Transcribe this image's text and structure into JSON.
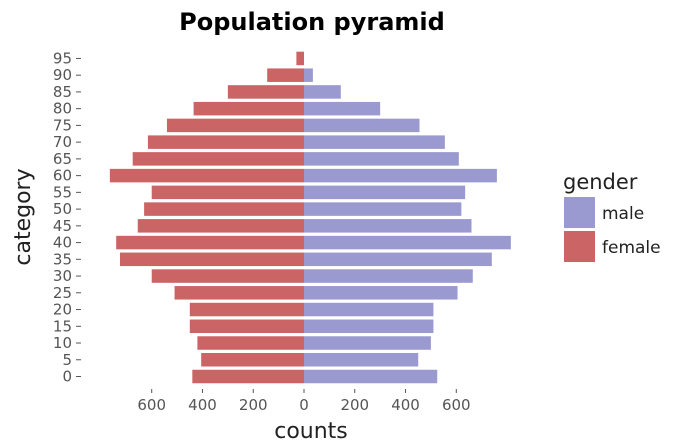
{
  "chart_data": {
    "type": "bar",
    "orientation": "horizontal",
    "title": "Population pyramid",
    "xlabel": "counts",
    "ylabel": "category",
    "categories": [
      "0",
      "5",
      "10",
      "15",
      "20",
      "25",
      "30",
      "35",
      "40",
      "45",
      "50",
      "55",
      "60",
      "65",
      "70",
      "75",
      "80",
      "85",
      "90",
      "95"
    ],
    "series": [
      {
        "name": "male",
        "color": "#9a9ad0",
        "values": [
          525,
          450,
          500,
          510,
          510,
          605,
          665,
          740,
          815,
          660,
          620,
          635,
          760,
          610,
          555,
          455,
          300,
          145,
          35,
          0
        ]
      },
      {
        "name": "female",
        "color": "#cb6464",
        "values": [
          440,
          405,
          420,
          450,
          450,
          510,
          600,
          725,
          740,
          655,
          630,
          600,
          765,
          675,
          615,
          540,
          435,
          300,
          145,
          30
        ]
      }
    ],
    "xticks": [
      {
        "label": "600",
        "value": -600
      },
      {
        "label": "400",
        "value": -400
      },
      {
        "label": "200",
        "value": -200
      },
      {
        "label": "0",
        "value": 0
      },
      {
        "label": "200",
        "value": 200
      },
      {
        "label": "400",
        "value": 400
      },
      {
        "label": "600",
        "value": 600
      }
    ],
    "xlim": [
      -800,
      820
    ],
    "legend": {
      "title": "gender",
      "placement": "right",
      "entries": [
        "male",
        "female"
      ]
    },
    "grid": false
  }
}
